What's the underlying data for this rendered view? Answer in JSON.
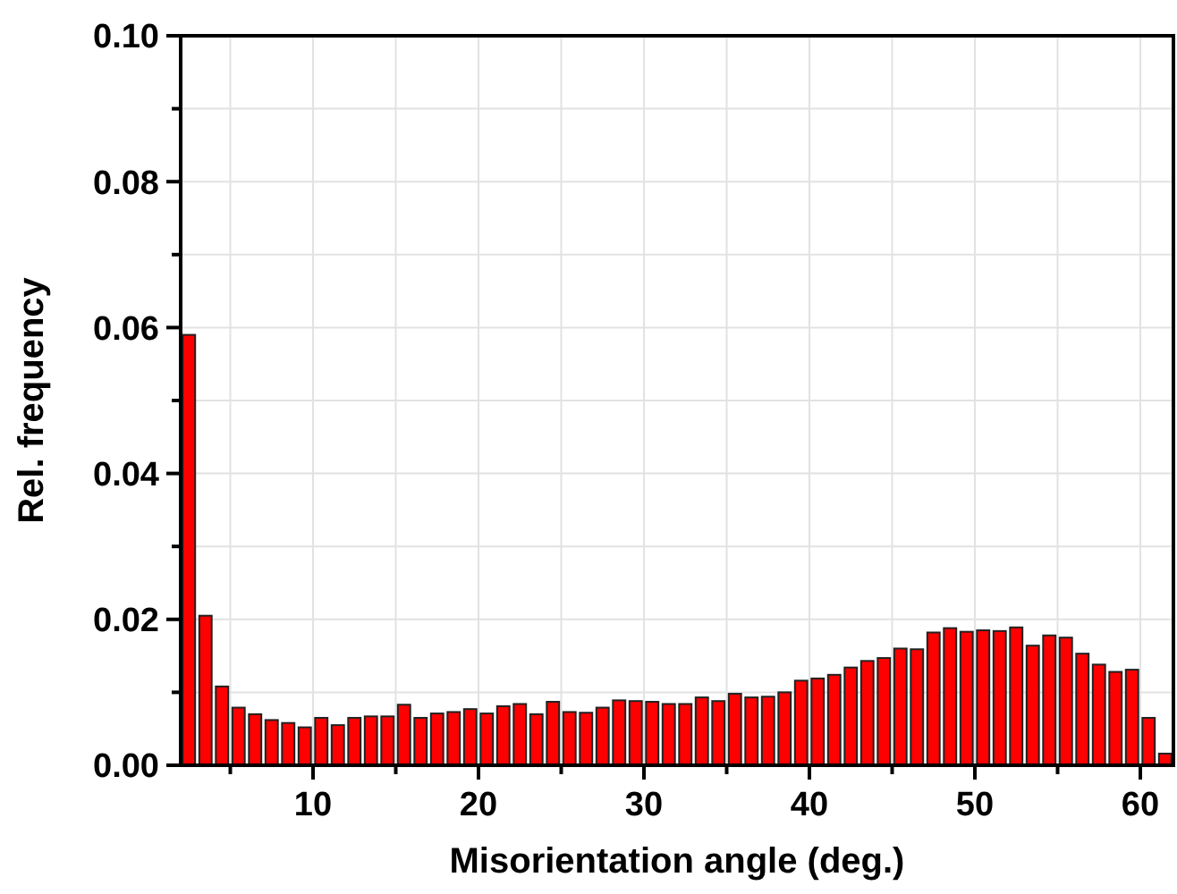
{
  "chart_data": {
    "type": "histogram",
    "xlabel": "Misorientation angle (deg.)",
    "ylabel": "Rel. frequency",
    "color": "#ff0000",
    "bins": [
      2,
      3,
      4,
      5,
      6,
      7,
      8,
      9,
      10,
      11,
      12,
      13,
      14,
      15,
      16,
      17,
      18,
      19,
      20,
      21,
      22,
      23,
      24,
      25,
      26,
      27,
      28,
      29,
      30,
      31,
      32,
      33,
      34,
      35,
      36,
      37,
      38,
      39,
      40,
      41,
      42,
      43,
      44,
      45,
      46,
      47,
      48,
      49,
      50,
      51,
      52,
      53,
      54,
      55,
      56,
      57,
      58,
      59,
      60,
      61,
      62
    ],
    "values": [
      0.059,
      0.0205,
      0.0108,
      0.0079,
      0.007,
      0.0062,
      0.0058,
      0.0052,
      0.0065,
      0.0055,
      0.0065,
      0.0067,
      0.0067,
      0.0083,
      0.0065,
      0.0071,
      0.0073,
      0.0077,
      0.0071,
      0.0081,
      0.0084,
      0.007,
      0.0087,
      0.0073,
      0.0072,
      0.0079,
      0.0089,
      0.0088,
      0.0087,
      0.0084,
      0.0084,
      0.0093,
      0.0088,
      0.0098,
      0.0093,
      0.0094,
      0.01,
      0.0116,
      0.0119,
      0.0124,
      0.0134,
      0.0143,
      0.0147,
      0.016,
      0.0159,
      0.0182,
      0.0188,
      0.0183,
      0.0185,
      0.0184,
      0.0189,
      0.0164,
      0.0178,
      0.0175,
      0.0153,
      0.0138,
      0.0128,
      0.0131,
      0.0065,
      0.0016
    ],
    "xlim": [
      2,
      62
    ],
    "ylim": [
      0,
      0.1
    ],
    "xticks": [
      {
        "value": 5,
        "label": null
      },
      10,
      {
        "value": 15,
        "label": null
      },
      20,
      {
        "value": 25,
        "label": null
      },
      30,
      {
        "value": 35,
        "label": null
      },
      40,
      {
        "value": 45,
        "label": null
      },
      50,
      {
        "value": 55,
        "label": null
      },
      60
    ],
    "yticks": [
      {
        "value": 0,
        "label": "0.00"
      },
      {
        "value": 0.01,
        "label": null
      },
      {
        "value": 0.02,
        "label": "0.02"
      },
      {
        "value": 0.03,
        "label": null
      },
      {
        "value": 0.04,
        "label": "0.04"
      },
      {
        "value": 0.05,
        "label": null
      },
      {
        "value": 0.06,
        "label": "0.06"
      },
      {
        "value": 0.07,
        "label": null
      },
      {
        "value": 0.08,
        "label": "0.08"
      },
      {
        "value": 0.09,
        "label": null
      },
      {
        "value": 0.1,
        "label": "0.10"
      }
    ],
    "grid": true
  }
}
